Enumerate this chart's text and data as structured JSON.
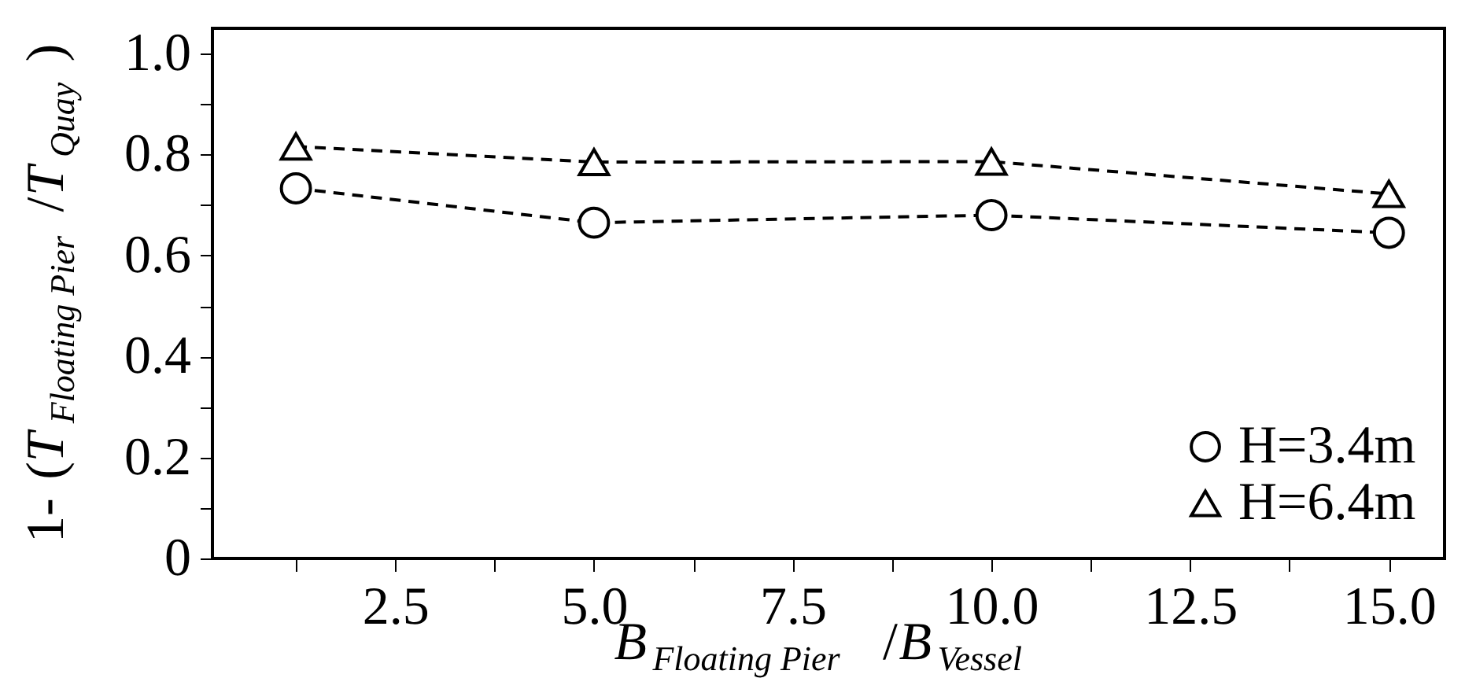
{
  "chart_data": {
    "type": "line",
    "xlabel": "B$_{Floating Pier}$ /B$_{Vessel}$",
    "ylabel": "1- (T$_{Floating Pier}$/T$_{Quay}$ )",
    "x": [
      1.25,
      5.0,
      10.0,
      15.0
    ],
    "series": [
      {
        "name": "H=3.4m",
        "color": "#000000",
        "marker": "circle",
        "values": [
          0.733,
          0.665,
          0.68,
          0.645
        ]
      },
      {
        "name": "H=6.4m",
        "color": "#000000",
        "marker": "triangle",
        "values": [
          0.816,
          0.785,
          0.786,
          0.722
        ]
      }
    ],
    "line_style": "dashed",
    "xlim": [
      0.2,
      15.7
    ],
    "xticks": [
      {
        "value": 1.25,
        "label": null
      },
      2.5,
      {
        "value": 3.75,
        "label": null
      },
      {
        "value": 5,
        "label": "5.0"
      },
      {
        "value": 6.25,
        "label": null
      },
      7.5,
      {
        "value": 8.75,
        "label": null
      },
      {
        "value": 10,
        "label": "10.0"
      },
      {
        "value": 11.25,
        "label": null
      },
      12.5,
      {
        "value": 13.75,
        "label": null
      },
      {
        "value": 15,
        "label": "15.0"
      }
    ],
    "ylim": [
      0,
      1.05
    ],
    "yticks": [
      0,
      {
        "value": 0.1,
        "label": null
      },
      0.2,
      {
        "value": 0.3,
        "label": null
      },
      0.4,
      {
        "value": 0.5,
        "label": null
      },
      0.6,
      {
        "value": 0.7,
        "label": null
      },
      0.8,
      {
        "value": 0.9,
        "label": null
      },
      {
        "value": 1,
        "label": "1.0"
      }
    ],
    "legend": "bottom right"
  }
}
